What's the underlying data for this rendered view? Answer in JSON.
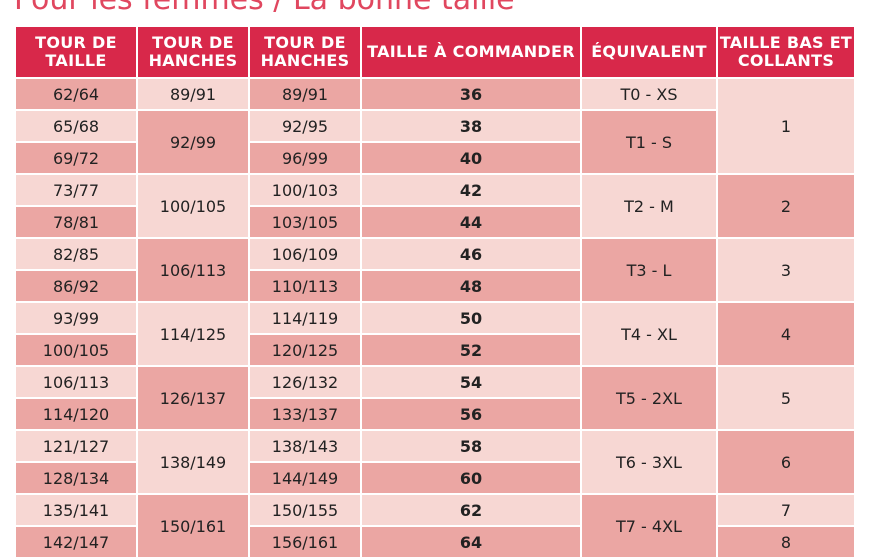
{
  "title": "Pour les femmes / La bonne taille",
  "headers": {
    "tour_de_taille": "TOUR DE\nTAILLE",
    "tour_de_hanches_1": "TOUR DE\nHANCHES",
    "tour_de_hanches_2": "TOUR DE\nHANCHES",
    "taille_a_commander": "TAILLE À COMMANDER",
    "equivalent": "ÉQUIVALENT",
    "taille_bas": "TAILLE BAS ET\nCOLLANTS"
  },
  "rows": [
    {
      "taille": "62/64",
      "hanches2": "89/91",
      "commander": "36"
    },
    {
      "taille": "65/68",
      "hanches2": "92/95",
      "commander": "38"
    },
    {
      "taille": "69/72",
      "hanches2": "96/99",
      "commander": "40"
    },
    {
      "taille": "73/77",
      "hanches2": "100/103",
      "commander": "42"
    },
    {
      "taille": "78/81",
      "hanches2": "103/105",
      "commander": "44"
    },
    {
      "taille": "82/85",
      "hanches2": "106/109",
      "commander": "46"
    },
    {
      "taille": "86/92",
      "hanches2": "110/113",
      "commander": "48"
    },
    {
      "taille": "93/99",
      "hanches2": "114/119",
      "commander": "50"
    },
    {
      "taille": "100/105",
      "hanches2": "120/125",
      "commander": "52"
    },
    {
      "taille": "106/113",
      "hanches2": "126/132",
      "commander": "54"
    },
    {
      "taille": "114/120",
      "hanches2": "133/137",
      "commander": "56"
    },
    {
      "taille": "121/127",
      "hanches2": "138/143",
      "commander": "58"
    },
    {
      "taille": "128/134",
      "hanches2": "144/149",
      "commander": "60"
    },
    {
      "taille": "135/141",
      "hanches2": "150/155",
      "commander": "62"
    },
    {
      "taille": "142/147",
      "hanches2": "156/161",
      "commander": "64"
    }
  ],
  "hanches1": [
    "89/91",
    "92/99",
    "100/105",
    "106/113",
    "114/125",
    "126/137",
    "138/149",
    "150/161"
  ],
  "equivalent": [
    "T0 - XS",
    "T1 - S",
    "T2 - M",
    "T3 - L",
    "T4 - XL",
    "T5 - 2XL",
    "T6 - 3XL",
    "T7 - 4XL"
  ],
  "taille_bas": [
    "1",
    "2",
    "3",
    "4",
    "5",
    "6",
    "7",
    "8"
  ],
  "colors": {
    "header": "#d8284a",
    "row_light": "#f7d7d3",
    "row_dark": "#eba6a3",
    "title": "#e0475f"
  }
}
